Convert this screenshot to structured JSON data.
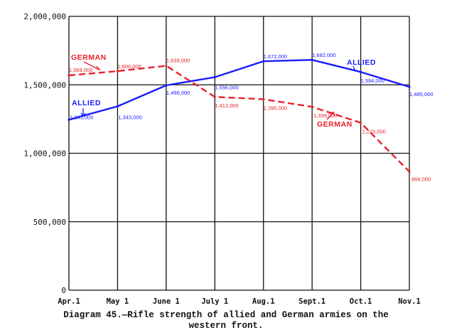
{
  "chart_data": {
    "type": "line",
    "title": "",
    "caption_line1": "Diagram 45.—Rifle strength of allied and German armies on the",
    "caption_line2": "western front.",
    "xlabel": "",
    "ylabel": "",
    "categories": [
      "Apr.1",
      "May 1",
      "June 1",
      "July 1",
      "Aug.1",
      "Sept.1",
      "Oct.1",
      "Nov.1"
    ],
    "y_ticks": [
      0,
      500000,
      1000000,
      1500000,
      2000000
    ],
    "y_tick_labels": [
      "0",
      "500,000",
      "1,000,000",
      "1,500,000",
      "2,000,000"
    ],
    "ylim": [
      0,
      2000000
    ],
    "grid": true,
    "series": [
      {
        "name": "ALLIED",
        "color": "#1a1aff",
        "style": "solid",
        "values": [
          1245000,
          1343000,
          1496000,
          1556000,
          1672000,
          1682000,
          1594000,
          1485000
        ],
        "value_labels": [
          "1,245,000",
          "1,343,000",
          "1,496,000",
          "1,556,000",
          "1,672,000",
          "1,682,000",
          "1,594,000",
          "1,485,000"
        ]
      },
      {
        "name": "GERMAN",
        "color": "#e8202a",
        "style": "dashed",
        "values": [
          1569000,
          1600000,
          1639000,
          1412000,
          1395000,
          1339000,
          1223000,
          866000
        ],
        "value_labels": [
          "1,569,000",
          "1,600,000",
          "1,639,000",
          "1,412,000",
          "1,395,000",
          "1,339,000",
          "1,223,000",
          "866,000"
        ]
      }
    ],
    "series_labels": [
      {
        "text": "GERMAN",
        "color": "#e8202a",
        "near": "top-left"
      },
      {
        "text": "ALLIED",
        "color": "#1a1aff",
        "near": "left"
      },
      {
        "text": "ALLIED",
        "color": "#1a1aff",
        "near": "top-right"
      },
      {
        "text": "GERMAN",
        "color": "#e8202a",
        "near": "right"
      }
    ]
  }
}
